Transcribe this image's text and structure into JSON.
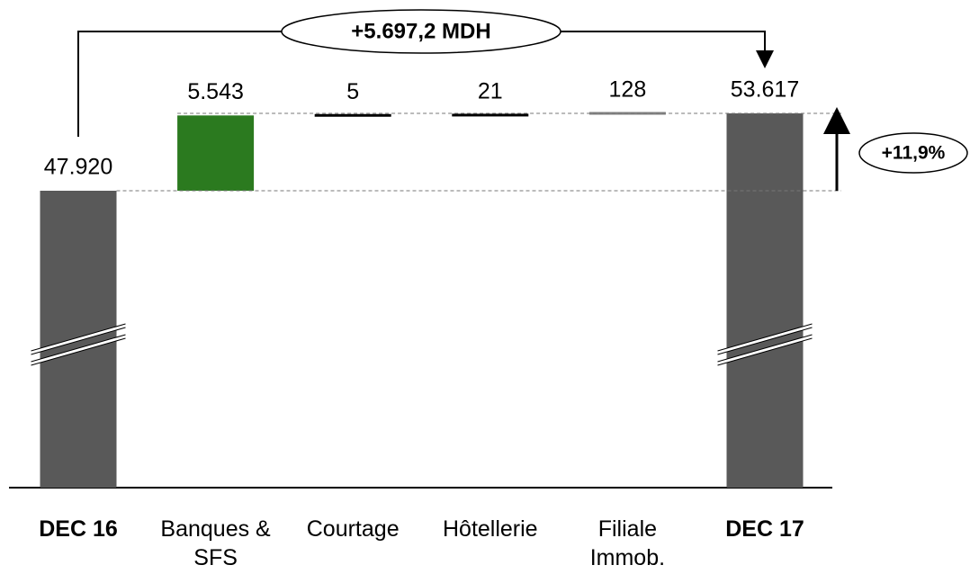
{
  "chart_data": {
    "type": "waterfall",
    "categories": [
      "DEC 16",
      "Banques & SFS",
      "Courtage",
      "Hôtellerie",
      "Filiale Immob.",
      "DEC 17"
    ],
    "values": [
      47920,
      5543,
      5,
      21,
      128,
      53617
    ],
    "value_labels": [
      "47.920",
      "5.543",
      "5",
      "21",
      "128",
      "53.617"
    ],
    "measure": [
      "total",
      "relative",
      "relative",
      "relative",
      "relative",
      "total"
    ],
    "colors": [
      "#595959",
      "#2b7a1f",
      "#000000",
      "#000000",
      "#808080",
      "#595959"
    ],
    "annotations": [
      "+5.697,2 MDH",
      "+11,9%"
    ],
    "axis_break": true
  }
}
